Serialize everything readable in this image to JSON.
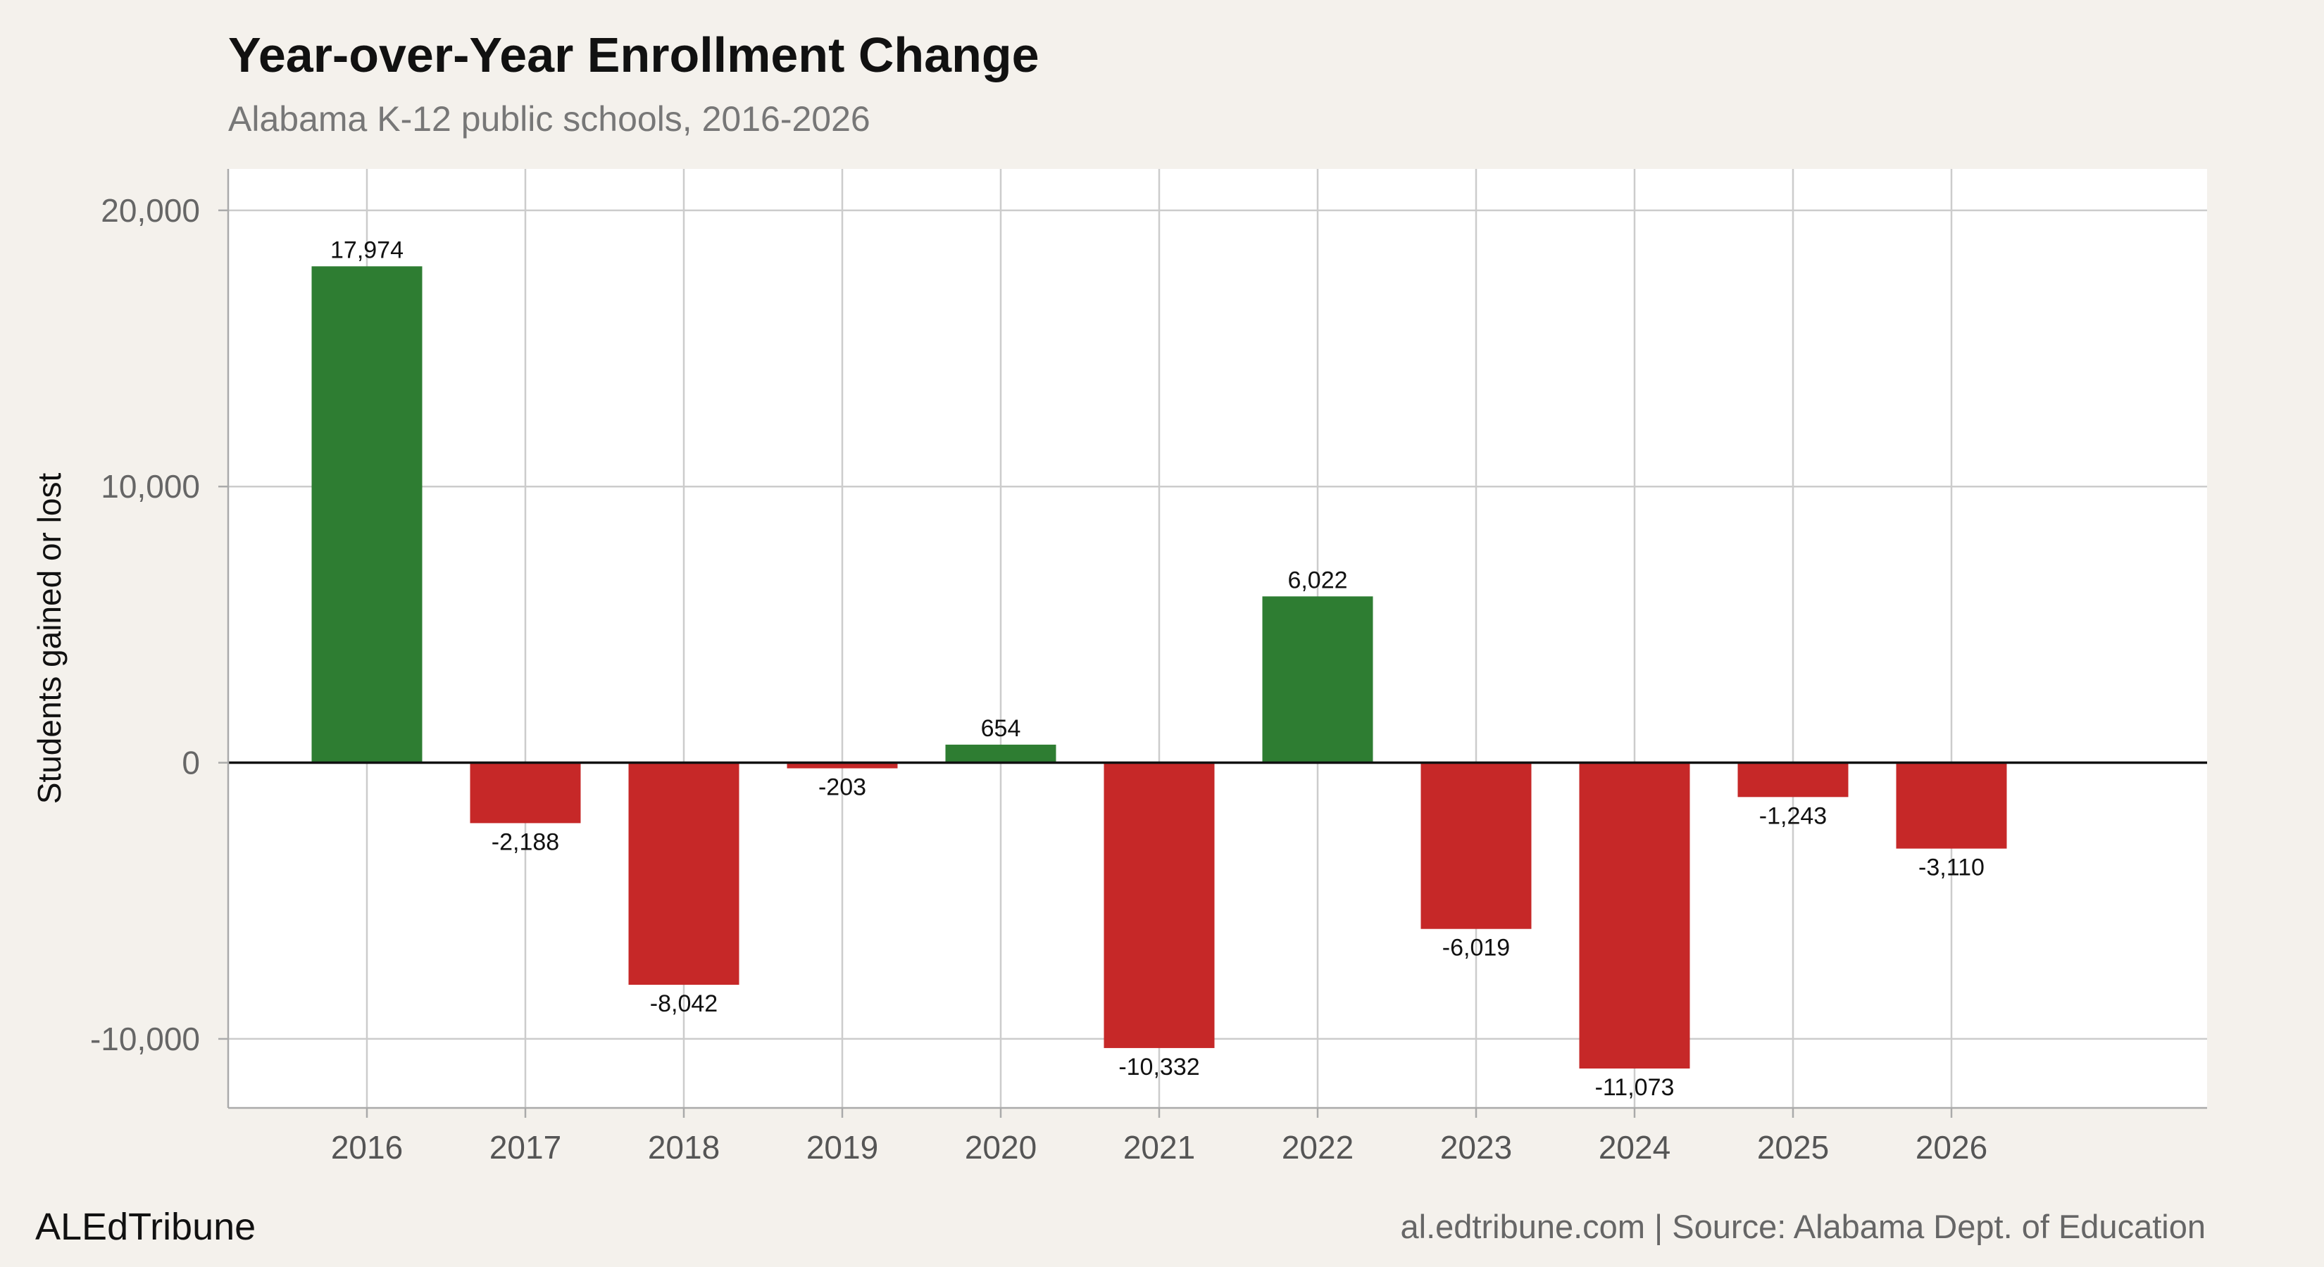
{
  "chart_data": {
    "type": "bar",
    "title": "Year-over-Year Enrollment Change",
    "subtitle": "Alabama K-12 public schools, 2016-2026",
    "ylabel": "Students gained or lost",
    "xlabel": "",
    "categories": [
      "2016",
      "2017",
      "2018",
      "2019",
      "2020",
      "2021",
      "2022",
      "2023",
      "2024",
      "2025",
      "2026"
    ],
    "values": [
      17974,
      -2188,
      -8042,
      -203,
      654,
      -10332,
      6022,
      -6019,
      -11073,
      -1243,
      -3110
    ],
    "data_labels": [
      "17,974",
      "-2,188",
      "-8,042",
      "-203",
      "654",
      "-10,332",
      "6,022",
      "-6,019",
      "-11,073",
      "-1,243",
      "-3,110"
    ],
    "ylim": [
      -12500,
      21500
    ],
    "yticks": [
      20000,
      10000,
      0,
      -10000
    ],
    "ytick_labels": [
      "20,000",
      "10,000",
      "0",
      "-10,000"
    ],
    "grid": true,
    "colors": {
      "positive": "#2e7d32",
      "negative": "#c62828",
      "panel": "#ffffff",
      "background": "#f4f1ec",
      "grid": "#cccccc",
      "zero_line": "#111111"
    }
  },
  "footer": {
    "logo": "ALEdTribune",
    "source": "al.edtribune.com | Source: Alabama Dept. of Education"
  }
}
